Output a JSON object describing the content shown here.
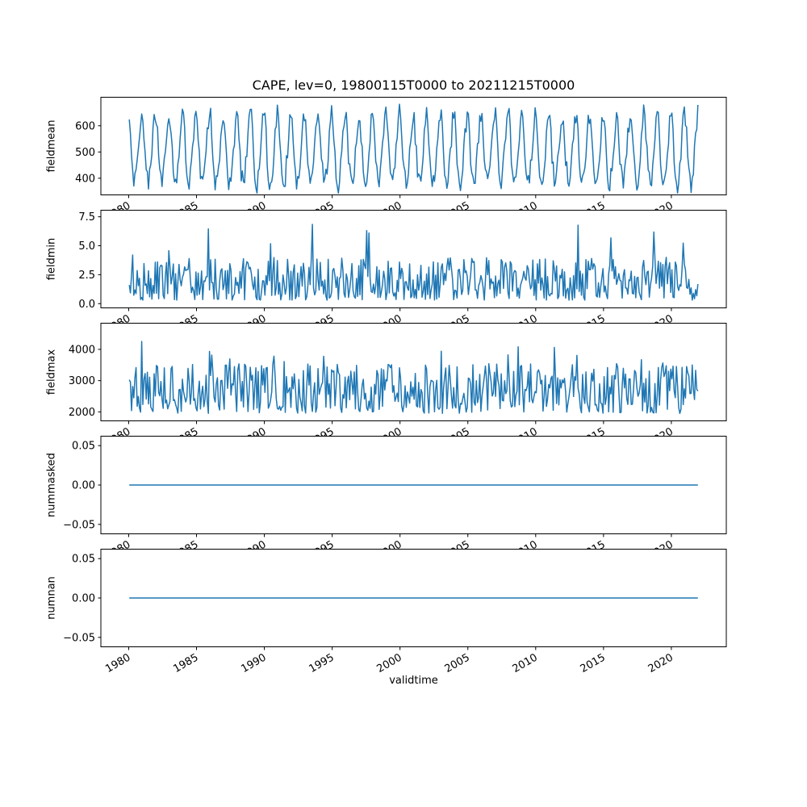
{
  "title": "CAPE, lev=0, 19800115T0000 to 20211215T0000",
  "line_color": "#1f77b4",
  "axis_color": "#000000",
  "background_color": "#ffffff",
  "x": {
    "label": "validtime",
    "start": 1980.0417,
    "end": 2021.9583,
    "n": 504,
    "lim": [
      1977.95,
      2024.05
    ],
    "ticks": [
      1980,
      1985,
      1990,
      1995,
      2000,
      2005,
      2010,
      2015,
      2020
    ],
    "tick_rotation_deg": 30
  },
  "chart_data": [
    {
      "type": "line",
      "ylabel": "fieldmean",
      "ylim": [
        335,
        710
      ],
      "yticks": [
        {
          "v": 400,
          "label": "400"
        },
        {
          "v": 500,
          "label": "500"
        },
        {
          "v": 600,
          "label": "600"
        }
      ],
      "approx_value_range": [
        355,
        695
      ],
      "gen": {
        "kind": "seasonal",
        "climatology": [
          632,
          562,
          486,
          426,
          392,
          380,
          402,
          448,
          502,
          558,
          612,
          645
        ],
        "noise": 38,
        "seed": 7
      }
    },
    {
      "type": "line",
      "ylabel": "fieldmin",
      "ylim": [
        -0.4,
        8.1
      ],
      "yticks": [
        {
          "v": 0.0,
          "label": "0.0"
        },
        {
          "v": 2.5,
          "label": "2.5"
        },
        {
          "v": 5.0,
          "label": "5.0"
        },
        {
          "v": 7.5,
          "label": "7.5"
        }
      ],
      "approx_value_range": [
        0.1,
        7.8
      ],
      "gen": {
        "kind": "spiky",
        "base": 0.3,
        "range": 3.7,
        "power": 1.4,
        "spike_prob": 0.03,
        "spike_min": 2.0,
        "spike_add": 2.2,
        "max": 7.8,
        "seed": 11
      }
    },
    {
      "type": "line",
      "ylabel": "fieldmax",
      "ylim": [
        1700,
        4850
      ],
      "yticks": [
        {
          "v": 2000,
          "label": "2000"
        },
        {
          "v": 3000,
          "label": "3000"
        },
        {
          "v": 4000,
          "label": "4000"
        }
      ],
      "approx_value_range": [
        1900,
        4700
      ],
      "gen": {
        "kind": "spiky",
        "base": 1950,
        "range": 1600,
        "power": 1.3,
        "spike_prob": 0.03,
        "spike_min": 500,
        "spike_add": 700,
        "max": 4700,
        "seed": 23
      }
    },
    {
      "type": "line",
      "ylabel": "nummasked",
      "ylim": [
        -0.0625,
        0.0625
      ],
      "yticks": [
        {
          "v": -0.05,
          "label": "−0.05"
        },
        {
          "v": 0.0,
          "label": "0.00"
        },
        {
          "v": 0.05,
          "label": "0.05"
        }
      ],
      "approx_value_range": [
        0,
        0
      ],
      "gen": {
        "kind": "constant",
        "value": 0
      }
    },
    {
      "type": "line",
      "ylabel": "numnan",
      "ylim": [
        -0.0625,
        0.0625
      ],
      "yticks": [
        {
          "v": -0.05,
          "label": "−0.05"
        },
        {
          "v": 0.0,
          "label": "0.00"
        },
        {
          "v": 0.05,
          "label": "0.05"
        }
      ],
      "approx_value_range": [
        0,
        0
      ],
      "gen": {
        "kind": "constant",
        "value": 0
      }
    }
  ]
}
